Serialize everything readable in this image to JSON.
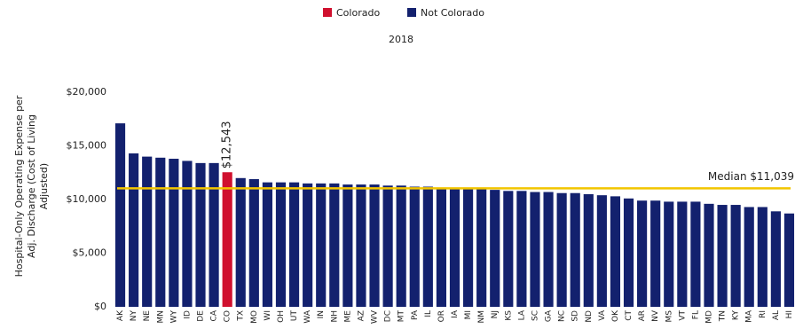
{
  "chart_data": {
    "type": "bar",
    "title": "2018",
    "ylabel": [
      "Hospital-Only Operating Expense per",
      "Adj. Discharge (Cost of Living",
      "Adjusted)"
    ],
    "categories": [
      "AK",
      "NY",
      "NE",
      "MN",
      "WY",
      "ID",
      "DE",
      "CA",
      "CO",
      "TX",
      "MO",
      "WI",
      "OH",
      "UT",
      "WA",
      "IN",
      "NH",
      "ME",
      "AZ",
      "WV",
      "DC",
      "MT",
      "PA",
      "IL",
      "OR",
      "IA",
      "MI",
      "NM",
      "NJ",
      "KS",
      "LA",
      "SC",
      "GA",
      "NC",
      "SD",
      "ND",
      "VA",
      "OK",
      "CT",
      "AR",
      "NV",
      "MS",
      "VT",
      "FL",
      "MD",
      "TN",
      "KY",
      "MA",
      "RI",
      "AL",
      "HI"
    ],
    "series": [
      {
        "name": "Colorado",
        "color": "#d0102e",
        "values": [
          null,
          null,
          null,
          null,
          null,
          null,
          null,
          null,
          12543,
          null,
          null,
          null,
          null,
          null,
          null,
          null,
          null,
          null,
          null,
          null,
          null,
          null,
          null,
          null,
          null,
          null,
          null,
          null,
          null,
          null,
          null,
          null,
          null,
          null,
          null,
          null,
          null,
          null,
          null,
          null,
          null,
          null,
          null,
          null,
          null,
          null,
          null,
          null,
          null,
          null,
          null
        ],
        "value_labels": [
          null,
          null,
          null,
          null,
          null,
          null,
          null,
          null,
          "$12,543",
          null,
          null,
          null,
          null,
          null,
          null,
          null,
          null,
          null,
          null,
          null,
          null,
          null,
          null,
          null,
          null,
          null,
          null,
          null,
          null,
          null,
          null,
          null,
          null,
          null,
          null,
          null,
          null,
          null,
          null,
          null,
          null,
          null,
          null,
          null,
          null,
          null,
          null,
          null,
          null,
          null,
          null
        ]
      },
      {
        "name": "Not Colorado",
        "color": "#13216e",
        "values": [
          17100,
          14300,
          14000,
          13900,
          13800,
          13600,
          13400,
          13400,
          null,
          12000,
          11900,
          11600,
          11600,
          11600,
          11500,
          11500,
          11500,
          11400,
          11400,
          11400,
          11300,
          11300,
          11200,
          11200,
          11100,
          11000,
          11000,
          11000,
          10900,
          10800,
          10800,
          10700,
          10700,
          10600,
          10600,
          10500,
          10400,
          10300,
          10100,
          9900,
          9900,
          9800,
          9800,
          9800,
          9600,
          9500,
          9500,
          9300,
          9300,
          8900,
          8700
        ]
      }
    ],
    "median": {
      "label": "Median $11,039",
      "value": 11039,
      "color": "#f2c500"
    },
    "ylim": [
      0,
      20000
    ],
    "yticks": [
      {
        "value": 0,
        "label": "$0"
      },
      {
        "value": 5000,
        "label": "$5,000"
      },
      {
        "value": 10000,
        "label": "$10,000"
      },
      {
        "value": 15000,
        "label": "$15,000"
      },
      {
        "value": 20000,
        "label": "$20,000"
      }
    ],
    "grid": false
  }
}
